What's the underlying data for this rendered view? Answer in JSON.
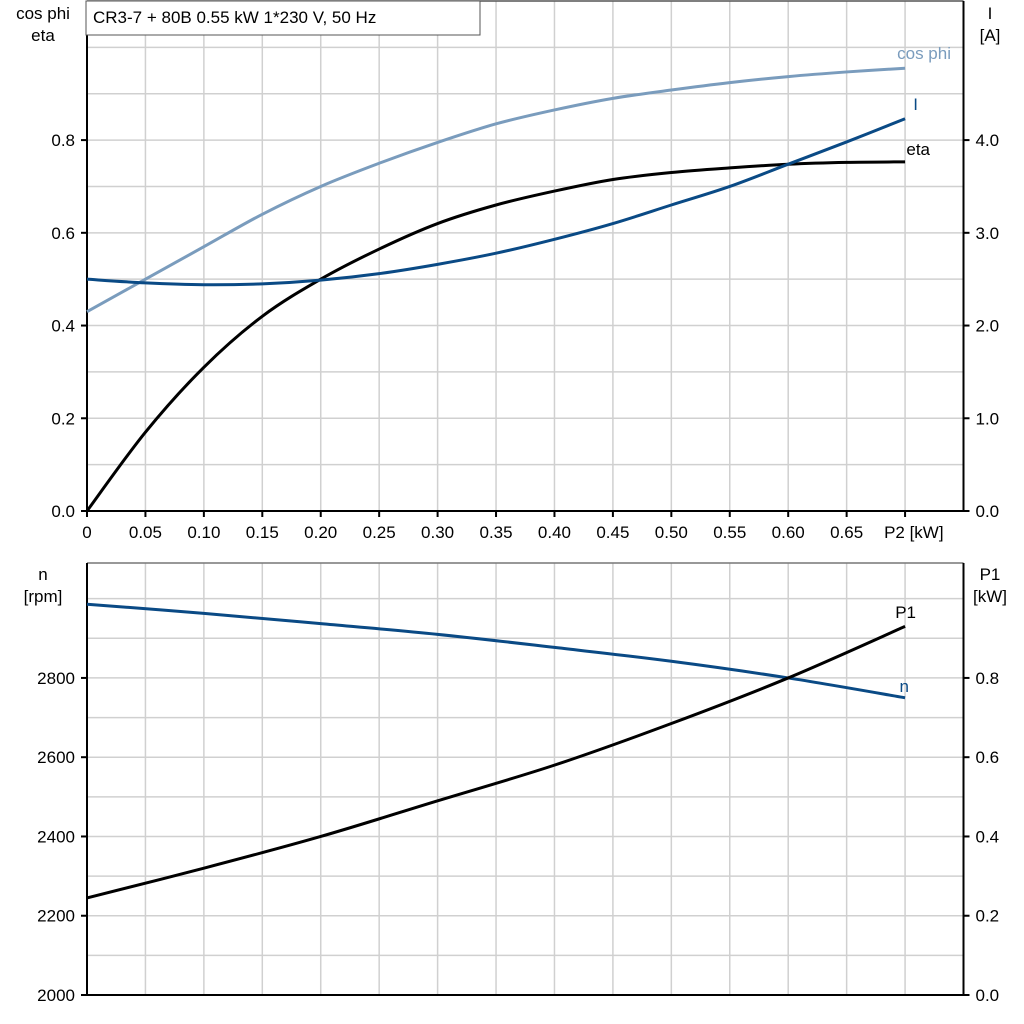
{
  "title": "CR3-7 + 80B   0.55 kW   1*230 V, 50 Hz",
  "colors": {
    "cos_phi": "#7a9cbd",
    "I": "#0a4a85",
    "eta": "#000000",
    "n": "#0a4a85",
    "P1": "#000000",
    "grid": "#d0d0d0"
  },
  "chart_data": [
    {
      "type": "line",
      "xlabel": "P2 [kW]",
      "x_ticks": [
        "0",
        "0.05",
        "0.10",
        "0.15",
        "0.20",
        "0.25",
        "0.30",
        "0.35",
        "0.40",
        "0.45",
        "0.50",
        "0.55",
        "0.60",
        "0.65"
      ],
      "xlim": [
        0,
        0.75
      ],
      "ylabel_left": [
        "cos phi",
        "eta"
      ],
      "ylim_left": [
        0,
        1.1
      ],
      "y_ticks_left": [
        "0.0",
        "0.2",
        "0.4",
        "0.6",
        "0.8"
      ],
      "ylabel_right": [
        "I",
        "[A]"
      ],
      "ylim_right": [
        0,
        5.5
      ],
      "y_ticks_right": [
        "0.0",
        "1.0",
        "2.0",
        "3.0",
        "4.0"
      ],
      "grid": true,
      "x": [
        0,
        0.05,
        0.1,
        0.15,
        0.2,
        0.25,
        0.3,
        0.35,
        0.4,
        0.45,
        0.5,
        0.55,
        0.6,
        0.65,
        0.7
      ],
      "series": [
        {
          "name": "cos phi",
          "axis": "left",
          "values": [
            0.43,
            0.5,
            0.57,
            0.64,
            0.7,
            0.75,
            0.795,
            0.835,
            0.865,
            0.89,
            0.908,
            0.924,
            0.937,
            0.947,
            0.955
          ]
        },
        {
          "name": "eta",
          "axis": "left",
          "values": [
            0,
            0.17,
            0.31,
            0.42,
            0.5,
            0.565,
            0.62,
            0.66,
            0.69,
            0.715,
            0.73,
            0.74,
            0.748,
            0.752,
            0.753
          ]
        },
        {
          "name": "I",
          "axis": "right",
          "values": [
            2.5,
            2.46,
            2.44,
            2.45,
            2.49,
            2.56,
            2.66,
            2.78,
            2.93,
            3.1,
            3.3,
            3.5,
            3.74,
            3.98,
            4.23
          ]
        }
      ]
    },
    {
      "type": "line",
      "xlim": [
        0,
        0.75
      ],
      "ylabel_left": [
        "n",
        "[rpm]"
      ],
      "ylim_left": [
        2000,
        3090
      ],
      "y_ticks_left": [
        "2000",
        "2200",
        "2400",
        "2600",
        "2800"
      ],
      "ylabel_right": [
        "P1",
        "[kW]"
      ],
      "ylim_right": [
        0,
        1.09
      ],
      "y_ticks_right": [
        "0.0",
        "0.2",
        "0.4",
        "0.6",
        "0.8"
      ],
      "grid": true,
      "x": [
        0,
        0.1,
        0.2,
        0.3,
        0.4,
        0.5,
        0.6,
        0.7
      ],
      "series": [
        {
          "name": "n",
          "axis": "left",
          "values": [
            2986,
            2963,
            2937,
            2910,
            2877,
            2842,
            2800,
            2750
          ]
        },
        {
          "name": "P1",
          "axis": "right",
          "values": [
            0.245,
            0.32,
            0.4,
            0.49,
            0.58,
            0.685,
            0.8,
            0.93
          ]
        }
      ]
    }
  ]
}
